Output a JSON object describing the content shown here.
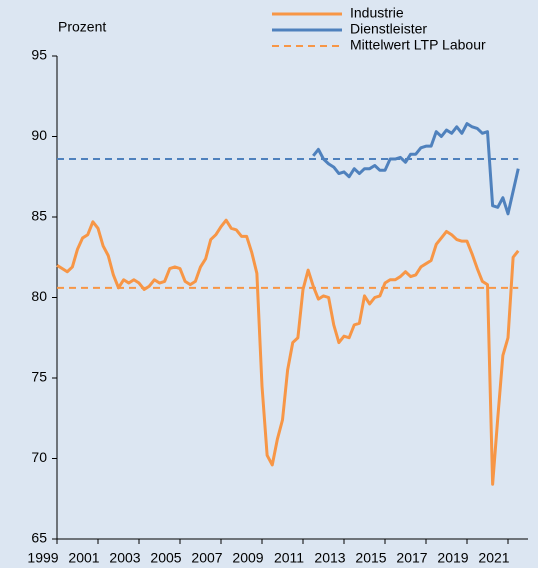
{
  "chart_data": {
    "type": "line",
    "y_label": "Prozent",
    "series": [
      {
        "name": "Industrie",
        "color": "#f79646",
        "x": [
          1999,
          1999.25,
          1999.5,
          1999.75,
          2000,
          2000.25,
          2000.5,
          2000.75,
          2001,
          2001.25,
          2001.5,
          2001.75,
          2002,
          2002.25,
          2002.5,
          2002.75,
          2003,
          2003.25,
          2003.5,
          2003.75,
          2004,
          2004.25,
          2004.5,
          2004.75,
          2005,
          2005.25,
          2005.5,
          2005.75,
          2006,
          2006.25,
          2006.5,
          2006.75,
          2007,
          2007.25,
          2007.5,
          2007.75,
          2008,
          2008.25,
          2008.5,
          2008.75,
          2009,
          2009.25,
          2009.5,
          2009.75,
          2010,
          2010.25,
          2010.5,
          2010.75,
          2011,
          2011.25,
          2011.5,
          2011.75,
          2012,
          2012.25,
          2012.5,
          2012.75,
          2013,
          2013.25,
          2013.5,
          2013.75,
          2014,
          2014.25,
          2014.5,
          2014.75,
          2015,
          2015.25,
          2015.5,
          2015.75,
          2016,
          2016.25,
          2016.5,
          2016.75,
          2017,
          2017.25,
          2017.5,
          2017.75,
          2018,
          2018.25,
          2018.5,
          2018.75,
          2019,
          2019.25,
          2019.5,
          2019.75,
          2020,
          2020.25,
          2020.5,
          2020.75,
          2021,
          2021.25,
          2021.5
        ],
        "values": [
          82.0,
          81.8,
          81.6,
          81.9,
          83.0,
          83.7,
          83.9,
          84.7,
          84.3,
          83.2,
          82.6,
          81.4,
          80.6,
          81.1,
          80.9,
          81.1,
          80.9,
          80.5,
          80.7,
          81.1,
          80.9,
          81.0,
          81.8,
          81.9,
          81.8,
          81.0,
          80.8,
          81.0,
          81.9,
          82.4,
          83.6,
          83.9,
          84.4,
          84.8,
          84.3,
          84.2,
          83.8,
          83.8,
          82.8,
          81.5,
          74.5,
          70.2,
          69.6,
          71.2,
          72.4,
          75.5,
          77.2,
          77.5,
          80.5,
          81.7,
          80.7,
          79.9,
          80.1,
          80.0,
          78.3,
          77.2,
          77.6,
          77.5,
          78.3,
          78.4,
          80.1,
          79.6,
          80.0,
          80.1,
          80.9,
          81.1,
          81.1,
          81.3,
          81.6,
          81.3,
          81.4,
          81.9,
          82.1,
          82.3,
          83.3,
          83.7,
          84.1,
          83.9,
          83.6,
          83.5,
          83.5,
          82.7,
          81.8,
          81.0,
          80.8,
          68.4,
          72.5,
          76.4,
          77.5,
          82.5,
          82.9
        ]
      },
      {
        "name": "Dienstleister",
        "color": "#4f81bd",
        "x": [
          2011.5,
          2011.75,
          2012,
          2012.25,
          2012.5,
          2012.75,
          2013,
          2013.25,
          2013.5,
          2013.75,
          2014,
          2014.25,
          2014.5,
          2014.75,
          2015,
          2015.25,
          2015.5,
          2015.75,
          2016,
          2016.25,
          2016.5,
          2016.75,
          2017,
          2017.25,
          2017.5,
          2017.75,
          2018,
          2018.25,
          2018.5,
          2018.75,
          2019,
          2019.25,
          2019.5,
          2019.75,
          2020,
          2020.25,
          2020.5,
          2020.75,
          2021,
          2021.25,
          2021.5
        ],
        "values": [
          88.8,
          89.2,
          88.6,
          88.3,
          88.1,
          87.7,
          87.8,
          87.5,
          88.0,
          87.7,
          88.0,
          88.0,
          88.2,
          87.9,
          87.9,
          88.6,
          88.6,
          88.7,
          88.4,
          88.9,
          88.9,
          89.3,
          89.4,
          89.4,
          90.3,
          90.0,
          90.4,
          90.2,
          90.6,
          90.2,
          90.8,
          90.6,
          90.5,
          90.2,
          90.3,
          85.7,
          85.6,
          86.2,
          85.2,
          86.6,
          88.0
        ]
      }
    ],
    "reference_lines": [
      {
        "value": 88.6,
        "color": "#4f81bd"
      },
      {
        "name": "Mittelwert LTP Labour",
        "value": 80.6,
        "color": "#f79646"
      }
    ],
    "xlim": [
      1999,
      2022
    ],
    "xticks": [
      1999,
      2001,
      2003,
      2005,
      2007,
      2009,
      2011,
      2013,
      2015,
      2017,
      2019,
      2021
    ],
    "ylim": [
      65,
      95
    ],
    "yticks": [
      65,
      70,
      75,
      80,
      85,
      90,
      95
    ],
    "grid": false,
    "legend": "top-right"
  }
}
